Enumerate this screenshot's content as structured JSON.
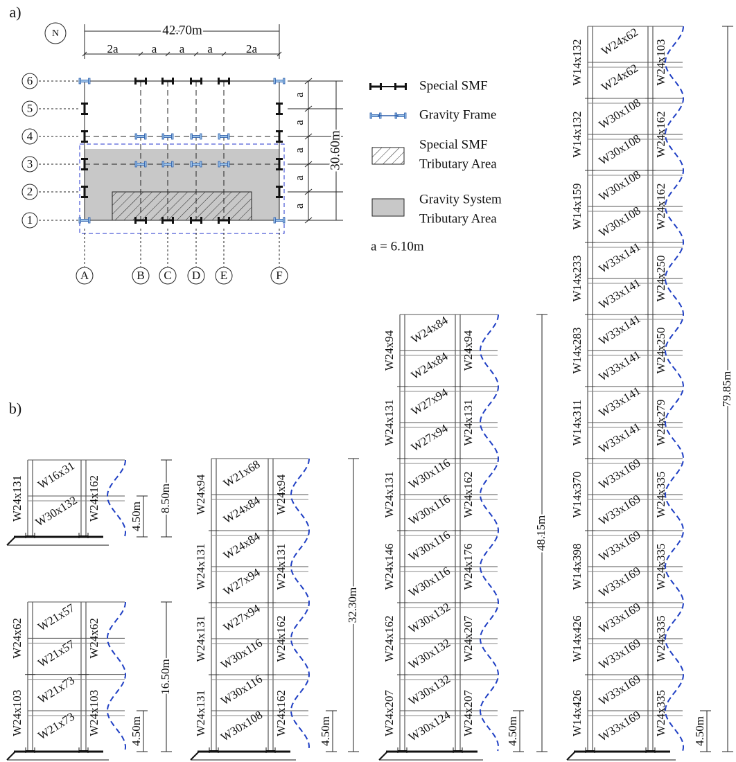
{
  "part_a": {
    "label": "a)",
    "north": "N",
    "overall_width": "42.70m",
    "bays": [
      "2a",
      "a",
      "a",
      "a",
      "2a"
    ],
    "overall_height": "30.60m",
    "stories": [
      "a",
      "a",
      "a",
      "a",
      "a"
    ],
    "rows": [
      "6",
      "5",
      "4",
      "3",
      "2",
      "1"
    ],
    "columns": [
      "A",
      "B",
      "C",
      "D",
      "E",
      "F"
    ],
    "legend": [
      {
        "lines": [
          "Special SMF"
        ]
      },
      {
        "lines": [
          "Gravity Frame"
        ]
      },
      {
        "lines": [
          "Special SMF",
          "Tributary Area"
        ]
      },
      {
        "lines": [
          "Gravity System",
          "Tributary Area"
        ]
      }
    ],
    "note": "a = 6.10m"
  },
  "part_b": {
    "label": "b)",
    "frames": [
      {
        "beams": [
          "W16x31",
          "W30x132"
        ],
        "exterior_columns": [
          "W24x131"
        ],
        "interior_columns": [
          "W24x162"
        ],
        "total_height": "8.50m",
        "first_story": "4.50m"
      },
      {
        "beams": [
          "W21x57",
          "W21x57",
          "W21x73",
          "W21x73"
        ],
        "exterior_columns": [
          "W24x62",
          "W24x103"
        ],
        "interior_columns": [
          "W24x62",
          "W24x103"
        ],
        "total_height": "16.50m",
        "first_story": "4.50m"
      },
      {
        "beams": [
          "W21x68",
          "W24x84",
          "W24x84",
          "W27x94",
          "W27x94",
          "W30x116",
          "W30x116",
          "W30x108"
        ],
        "exterior_columns": [
          "W24x94",
          "W24x131",
          "W24x131",
          "W24x131"
        ],
        "interior_columns": [
          "W24x94",
          "W24x131",
          "W24x162",
          "W24x162"
        ],
        "total_height": "32.30m",
        "first_story": "4.50m"
      },
      {
        "beams": [
          "W24x84",
          "W24x84",
          "W27x94",
          "W27x94",
          "W30x116",
          "W30x116",
          "W30x116",
          "W30x116",
          "W30x132",
          "W30x132",
          "W30x132",
          "W30x124"
        ],
        "exterior_columns": [
          "W24x94",
          "W24x131",
          "W24x131",
          "W24x146",
          "W24x162",
          "W24x207"
        ],
        "interior_columns": [
          "W24x94",
          "W24x131",
          "W24x162",
          "W24x176",
          "W24x207",
          "W24x207"
        ],
        "total_height": "48.15m",
        "first_story": "4.50m"
      },
      {
        "beams": [
          "W24x62",
          "W24x62",
          "W30x108",
          "W30x108",
          "W30x108",
          "W30x108",
          "W33x141",
          "W33x141",
          "W33x141",
          "W33x141",
          "W33x141",
          "W33x141",
          "W33x169",
          "W33x169",
          "W33x169",
          "W33x169",
          "W33x169",
          "W33x169",
          "W33x169",
          "W33x169"
        ],
        "exterior_columns": [
          "W14x132",
          "W14x132",
          "W14x159",
          "W14x233",
          "W14x283",
          "W14x311",
          "W14x370",
          "W14x398",
          "W14x426",
          "W14x426"
        ],
        "interior_columns": [
          "W24x103",
          "W24x162",
          "W24x162",
          "W24x250",
          "W24x250",
          "W24x279",
          "W24x335",
          "W24x335",
          "W24x335",
          "W24x335"
        ],
        "total_height": "79.85m",
        "first_story": "4.50m"
      }
    ]
  }
}
